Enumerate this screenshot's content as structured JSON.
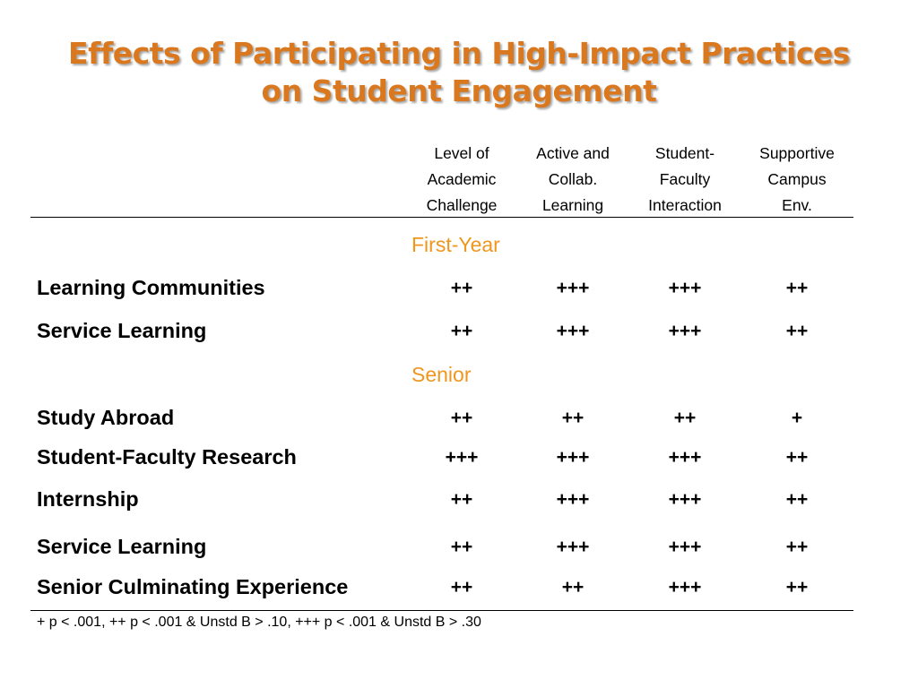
{
  "title": {
    "line1": "Effects of Participating in High-Impact Practices",
    "line2": "on Student Engagement"
  },
  "columns": [
    [
      "Level of",
      "Academic",
      "Challenge"
    ],
    [
      "Active and",
      "Collab.",
      "Learning"
    ],
    [
      "Student-",
      "Faculty",
      "Interaction"
    ],
    [
      "Supportive",
      "Campus",
      "Env."
    ]
  ],
  "sections": {
    "first_year": "First-Year",
    "senior": "Senior"
  },
  "rows": [
    {
      "label": "Learning Communities",
      "values": [
        "++",
        "+++",
        "+++",
        "++"
      ]
    },
    {
      "label": "Service Learning",
      "values": [
        "++",
        "+++",
        "+++",
        "++"
      ]
    },
    {
      "label": "Study Abroad",
      "values": [
        "++",
        "++",
        "++",
        "+"
      ]
    },
    {
      "label": "Student-Faculty Research",
      "values": [
        "+++",
        "+++",
        "+++",
        "++"
      ]
    },
    {
      "label": "Internship",
      "values": [
        "++",
        "+++",
        "+++",
        "++"
      ]
    },
    {
      "label": "Service Learning",
      "values": [
        "++",
        "+++",
        "+++",
        "++"
      ]
    },
    {
      "label": "Senior Culminating Experience",
      "values": [
        "++",
        "++",
        "+++",
        "++"
      ]
    }
  ],
  "footnote": "+ p < .001, ++ p < .001 & Unstd B > .10, +++ p < .001 & Unstd B > .30",
  "colors": {
    "title": "#d9781e",
    "section": "#f0961e"
  }
}
